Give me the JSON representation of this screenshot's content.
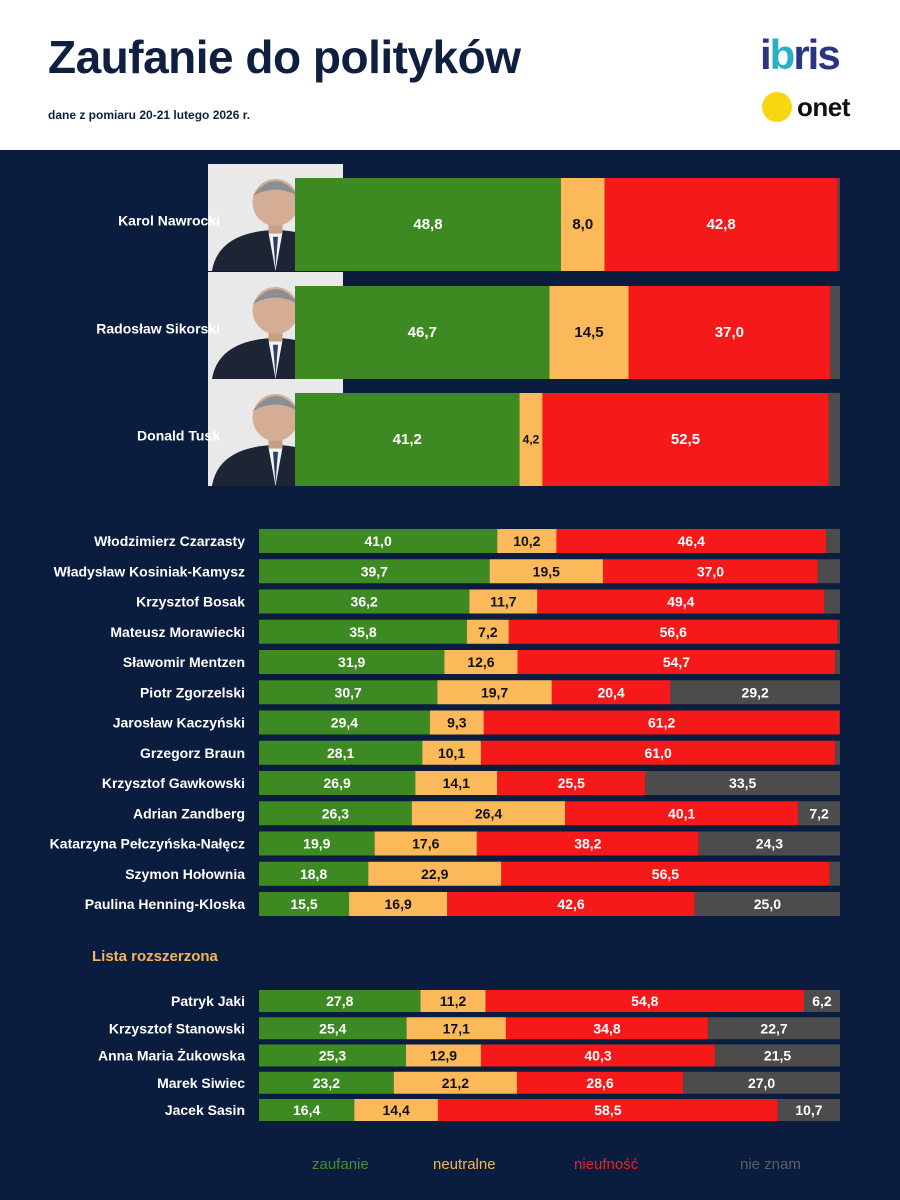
{
  "header": {
    "title": "Zaufanie do polityków",
    "subtitle": "dane z pomiaru 20-21 lutego 2026 r.",
    "logo_ibris_before": "i",
    "logo_ibris_dot": "b",
    "logo_ibris_after": "ris",
    "logo_onet": "onet"
  },
  "section_extended": "Lista rozszerzona",
  "colors": {
    "trust": "#3d8a22",
    "neutral": "#fcb95a",
    "distrust": "#f5191a",
    "unknown": "#4c4c4c",
    "background": "#0b1d3f",
    "legend_trust": "#3f9128",
    "legend_neutral": "#f5b45a",
    "legend_distrust": "#f11e1e",
    "legend_unknown": "#5c5f66"
  },
  "legend": [
    "zaufanie",
    "neutralne",
    "nieufność",
    "nie znam"
  ],
  "chart_data": {
    "type": "bar",
    "orientation": "horizontal",
    "stacked": true,
    "title": "Zaufanie do polityków",
    "unit": "%",
    "series_names": [
      "zaufanie",
      "neutralne",
      "nieufność",
      "nie znam"
    ],
    "groups": [
      {
        "name": "top",
        "rows": [
          {
            "name": "Karol Nawrocki",
            "values": [
              48.8,
              8.0,
              42.8,
              0.4
            ],
            "labels": [
              "48,8",
              "8,0",
              "42,8",
              ""
            ]
          },
          {
            "name": "Radosław Sikorski",
            "values": [
              46.7,
              14.5,
              37.0,
              1.8
            ],
            "labels": [
              "46,7",
              "14,5",
              "37,0",
              ""
            ]
          },
          {
            "name": "Donald Tusk",
            "values": [
              41.2,
              4.2,
              52.5,
              2.1
            ],
            "labels": [
              "41,2",
              "4,2",
              "52,5",
              ""
            ]
          }
        ]
      },
      {
        "name": "main",
        "rows": [
          {
            "name": "Włodzimierz Czarzasty",
            "values": [
              41.0,
              10.2,
              46.4,
              2.4
            ],
            "labels": [
              "41,0",
              "10,2",
              "46,4",
              ""
            ]
          },
          {
            "name": "Władysław Kosiniak-Kamysz",
            "values": [
              39.7,
              19.5,
              37.0,
              3.8
            ],
            "labels": [
              "39,7",
              "19,5",
              "37,0",
              ""
            ]
          },
          {
            "name": "Krzysztof Bosak",
            "values": [
              36.2,
              11.7,
              49.4,
              2.7
            ],
            "labels": [
              "36,2",
              "11,7",
              "49,4",
              ""
            ]
          },
          {
            "name": "Mateusz Morawiecki",
            "values": [
              35.8,
              7.2,
              56.6,
              0.4
            ],
            "labels": [
              "35,8",
              "7,2",
              "56,6",
              ""
            ]
          },
          {
            "name": "Sławomir Mentzen",
            "values": [
              31.9,
              12.6,
              54.7,
              0.8
            ],
            "labels": [
              "31,9",
              "12,6",
              "54,7",
              ""
            ]
          },
          {
            "name": "Piotr Zgorzelski",
            "values": [
              30.7,
              19.7,
              20.4,
              29.2
            ],
            "labels": [
              "30,7",
              "19,7",
              "20,4",
              "29,2"
            ]
          },
          {
            "name": "Jarosław Kaczyński",
            "values": [
              29.4,
              9.3,
              61.2,
              0.1
            ],
            "labels": [
              "29,4",
              "9,3",
              "61,2",
              ""
            ]
          },
          {
            "name": "Grzegorz Braun",
            "values": [
              28.1,
              10.1,
              61.0,
              0.8
            ],
            "labels": [
              "28,1",
              "10,1",
              "61,0",
              ""
            ]
          },
          {
            "name": "Krzysztof Gawkowski",
            "values": [
              26.9,
              14.1,
              25.5,
              33.5
            ],
            "labels": [
              "26,9",
              "14,1",
              "25,5",
              "33,5"
            ]
          },
          {
            "name": "Adrian Zandberg",
            "values": [
              26.3,
              26.4,
              40.1,
              7.2
            ],
            "labels": [
              "26,3",
              "26,4",
              "40,1",
              "7,2"
            ]
          },
          {
            "name": "Katarzyna Pełczyńska-Nałęcz",
            "values": [
              19.9,
              17.6,
              38.2,
              24.3
            ],
            "labels": [
              "19,9",
              "17,6",
              "38,2",
              "24,3"
            ]
          },
          {
            "name": "Szymon Hołownia",
            "values": [
              18.8,
              22.9,
              56.5,
              1.8
            ],
            "labels": [
              "18,8",
              "22,9",
              "56,5",
              ""
            ]
          },
          {
            "name": "Paulina Henning-Kloska",
            "values": [
              15.5,
              16.9,
              42.6,
              25.0
            ],
            "labels": [
              "15,5",
              "16,9",
              "42,6",
              "25,0"
            ]
          }
        ]
      },
      {
        "name": "extended",
        "rows": [
          {
            "name": "Patryk Jaki",
            "values": [
              27.8,
              11.2,
              54.8,
              6.2
            ],
            "labels": [
              "27,8",
              "11,2",
              "54,8",
              "6,2"
            ]
          },
          {
            "name": "Krzysztof Stanowski",
            "values": [
              25.4,
              17.1,
              34.8,
              22.7
            ],
            "labels": [
              "25,4",
              "17,1",
              "34,8",
              "22,7"
            ]
          },
          {
            "name": "Anna Maria Żukowska",
            "values": [
              25.3,
              12.9,
              40.3,
              21.5
            ],
            "labels": [
              "25,3",
              "12,9",
              "40,3",
              "21,5"
            ]
          },
          {
            "name": "Marek Siwiec",
            "values": [
              23.2,
              21.2,
              28.6,
              27.0
            ],
            "labels": [
              "23,2",
              "21,2",
              "28,6",
              "27,0"
            ]
          },
          {
            "name": "Jacek Sasin",
            "values": [
              16.4,
              14.4,
              58.5,
              10.7
            ],
            "labels": [
              "16,4",
              "14,4",
              "58,5",
              "10,7"
            ]
          }
        ]
      }
    ]
  }
}
